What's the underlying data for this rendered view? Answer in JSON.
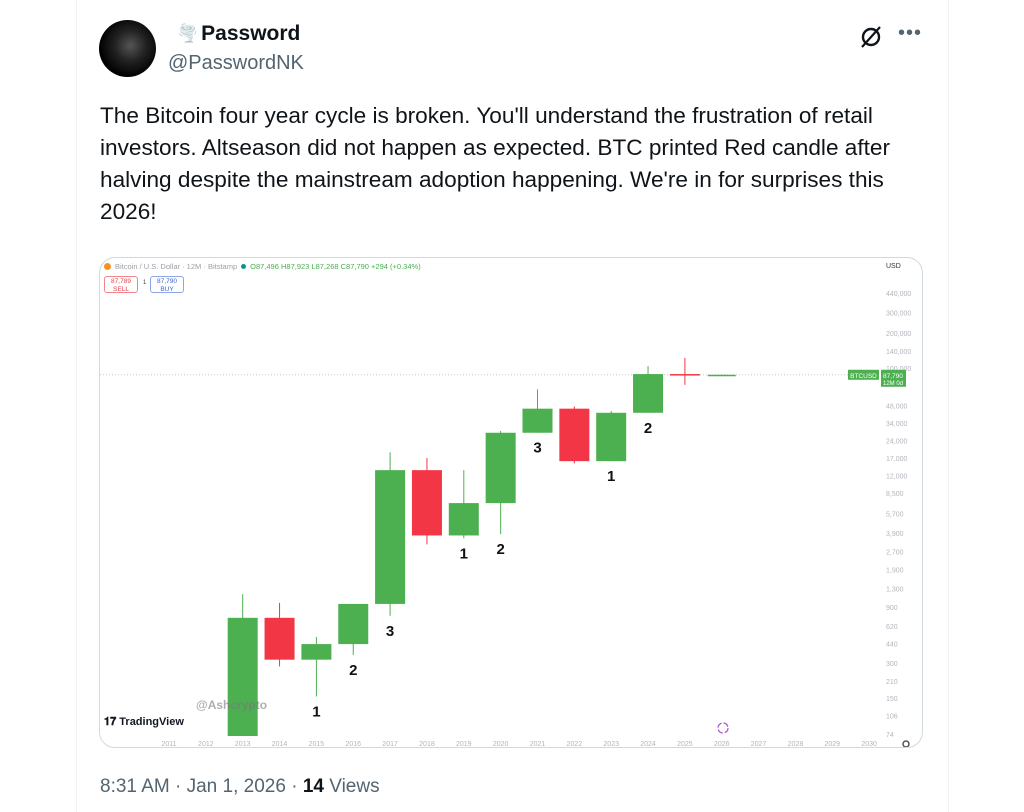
{
  "tweet": {
    "author_name": "Password",
    "author_emoji": "🌪️",
    "handle": "@PasswordNK",
    "text": "The Bitcoin four year cycle is broken. You'll understand the frustration of retail investors. Altseason did not happen as expected. BTC printed Red candle after halving despite the mainstream adoption happening. We're in for surprises this 2026!",
    "time": "8:31 AM",
    "date": "Jan 1, 2026",
    "views_count": "14",
    "views_label": "Views",
    "separator": "·",
    "more_icon": "more-horizontal-icon",
    "grok_icon": "grok-icon"
  },
  "chart_image": {
    "symbol_title": "Bitcoin / U.S. Dollar · 12M · Bitstamp",
    "ohlc": "O87,496 H87,923 L87,268 C87,790 +294 (+0.34%)",
    "sell_price": "87,789",
    "sell_label": "SELL",
    "buy_price": "87,790",
    "buy_label": "BUY",
    "spread": "1",
    "currency": "USD",
    "symbol_tag": "BTCUSD",
    "last_price": "87,790",
    "countdown": "12M 0d",
    "watermark": "@Ashcrypto",
    "brand": "TradingView",
    "colors": {
      "up": "#4caf50",
      "down": "#f23645",
      "axis_text": "#b2b5be"
    }
  },
  "chart_data": {
    "type": "candlestick",
    "scale": "log",
    "grid": false,
    "x_ticks": [
      "2011",
      "2012",
      "2013",
      "2014",
      "2015",
      "2016",
      "2017",
      "2018",
      "2019",
      "2020",
      "2021",
      "2022",
      "2023",
      "2024",
      "2025",
      "2026",
      "2027",
      "2028",
      "2029",
      "2030"
    ],
    "y_ticks": [
      "440,000",
      "300,000",
      "200,000",
      "140,000",
      "100,000",
      "48,000",
      "34,000",
      "24,000",
      "17,000",
      "12,000",
      "8,500",
      "5,700",
      "3,900",
      "2,700",
      "1,900",
      "1,300",
      "900",
      "620",
      "440",
      "300",
      "210",
      "150",
      "106",
      "74"
    ],
    "y_tick_values": [
      440000,
      300000,
      200000,
      140000,
      100000,
      48000,
      34000,
      24000,
      17000,
      12000,
      8500,
      5700,
      3900,
      2700,
      1900,
      1300,
      900,
      620,
      440,
      300,
      210,
      150,
      106,
      74
    ],
    "candles": [
      {
        "year": "2013",
        "open": 13,
        "high": 1165,
        "low": 13,
        "close": 730
      },
      {
        "year": "2014",
        "open": 730,
        "high": 980,
        "low": 280,
        "close": 320
      },
      {
        "year": "2015",
        "open": 320,
        "high": 500,
        "low": 155,
        "close": 435
      },
      {
        "year": "2016",
        "open": 435,
        "high": 960,
        "low": 350,
        "close": 960
      },
      {
        "year": "2017",
        "open": 960,
        "high": 19000,
        "low": 760,
        "close": 13400
      },
      {
        "year": "2018",
        "open": 13400,
        "high": 17000,
        "low": 3100,
        "close": 3700
      },
      {
        "year": "2019",
        "open": 3700,
        "high": 13400,
        "low": 3500,
        "close": 7000
      },
      {
        "year": "2020",
        "open": 7000,
        "high": 29000,
        "low": 3800,
        "close": 28000
      },
      {
        "year": "2021",
        "open": 28000,
        "high": 66000,
        "low": 28000,
        "close": 45000
      },
      {
        "year": "2022",
        "open": 45000,
        "high": 47000,
        "low": 15300,
        "close": 16000
      },
      {
        "year": "2023",
        "open": 16000,
        "high": 43000,
        "low": 16000,
        "close": 41500
      },
      {
        "year": "2024",
        "open": 41500,
        "high": 104000,
        "low": 41500,
        "close": 89000
      },
      {
        "year": "2025",
        "open": 89000,
        "high": 122000,
        "low": 72000,
        "close": 87500
      },
      {
        "year": "2026",
        "open": 87496,
        "high": 87923,
        "low": 87268,
        "close": 87790
      }
    ],
    "annotations": [
      {
        "year": "2015",
        "text": "1"
      },
      {
        "year": "2016",
        "text": "2"
      },
      {
        "year": "2017",
        "text": "3"
      },
      {
        "year": "2019",
        "text": "1"
      },
      {
        "year": "2020",
        "text": "2"
      },
      {
        "year": "2021",
        "text": "3"
      },
      {
        "year": "2023",
        "text": "1"
      },
      {
        "year": "2024",
        "text": "2"
      }
    ],
    "current_price": 87790
  }
}
